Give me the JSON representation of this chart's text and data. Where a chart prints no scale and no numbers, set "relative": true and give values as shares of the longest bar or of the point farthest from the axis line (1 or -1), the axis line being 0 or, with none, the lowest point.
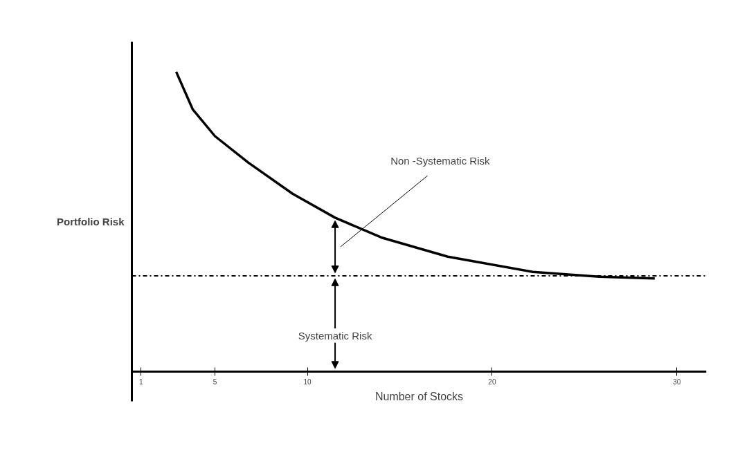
{
  "chart_data": {
    "type": "line",
    "relative": true,
    "xlabel": "Number of Stocks",
    "ylabel": "Portfolio Risk",
    "x": [
      2.9,
      3.8,
      5.0,
      6.8,
      9.2,
      11.5,
      14.0,
      17.6,
      22.2,
      25.8,
      28.8
    ],
    "series": [
      {
        "color": "#000000",
        "values": [
          1,
          0.874,
          0.785,
          0.697,
          0.593,
          0.513,
          0.447,
          0.383,
          0.332,
          0.316,
          0.31
        ]
      }
    ],
    "xlim": [
      0.5,
      31.6
    ],
    "xticks": [
      1,
      5,
      10,
      20,
      30
    ],
    "ref_lines": [
      {
        "axis": "y",
        "value": 0.319,
        "color": "#000000",
        "line_style": "dashdot"
      }
    ],
    "annotations": [
      "Non -Systematic Risk",
      {
        "text": "Systematic Risk",
        "x": 11.5,
        "y": 0.319
      }
    ],
    "grid": false,
    "marker": "none",
    "line_style": "solid"
  }
}
